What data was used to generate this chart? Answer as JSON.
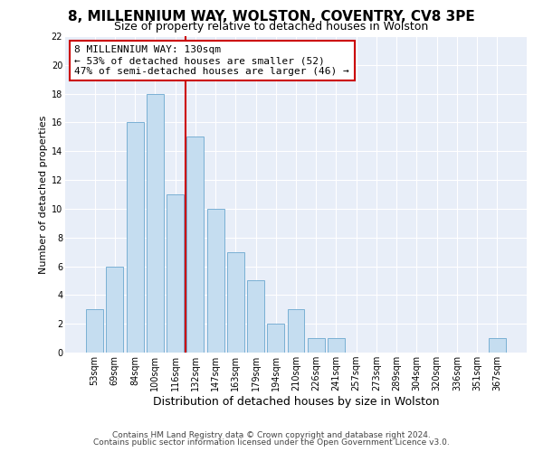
{
  "title": "8, MILLENNIUM WAY, WOLSTON, COVENTRY, CV8 3PE",
  "subtitle": "Size of property relative to detached houses in Wolston",
  "xlabel": "Distribution of detached houses by size in Wolston",
  "ylabel": "Number of detached properties",
  "bar_labels": [
    "53sqm",
    "69sqm",
    "84sqm",
    "100sqm",
    "116sqm",
    "132sqm",
    "147sqm",
    "163sqm",
    "179sqm",
    "194sqm",
    "210sqm",
    "226sqm",
    "241sqm",
    "257sqm",
    "273sqm",
    "289sqm",
    "304sqm",
    "320sqm",
    "336sqm",
    "351sqm",
    "367sqm"
  ],
  "bar_values": [
    3,
    6,
    16,
    18,
    11,
    15,
    10,
    7,
    5,
    2,
    3,
    1,
    1,
    0,
    0,
    0,
    0,
    0,
    0,
    0,
    1
  ],
  "bar_color": "#c5ddf0",
  "bar_edge_color": "#7ab0d4",
  "vline_color": "#cc0000",
  "annotation_title": "8 MILLENNIUM WAY: 130sqm",
  "annotation_line1": "← 53% of detached houses are smaller (52)",
  "annotation_line2": "47% of semi-detached houses are larger (46) →",
  "annotation_box_color": "#ffffff",
  "annotation_box_edge": "#cc0000",
  "ylim": [
    0,
    22
  ],
  "yticks": [
    0,
    2,
    4,
    6,
    8,
    10,
    12,
    14,
    16,
    18,
    20,
    22
  ],
  "footer1": "Contains HM Land Registry data © Crown copyright and database right 2024.",
  "footer2": "Contains public sector information licensed under the Open Government Licence v3.0.",
  "bg_color": "#e8eef8",
  "title_fontsize": 11,
  "subtitle_fontsize": 9,
  "ylabel_fontsize": 8,
  "xlabel_fontsize": 9,
  "tick_fontsize": 7,
  "annotation_fontsize": 8,
  "footer_fontsize": 6.5
}
